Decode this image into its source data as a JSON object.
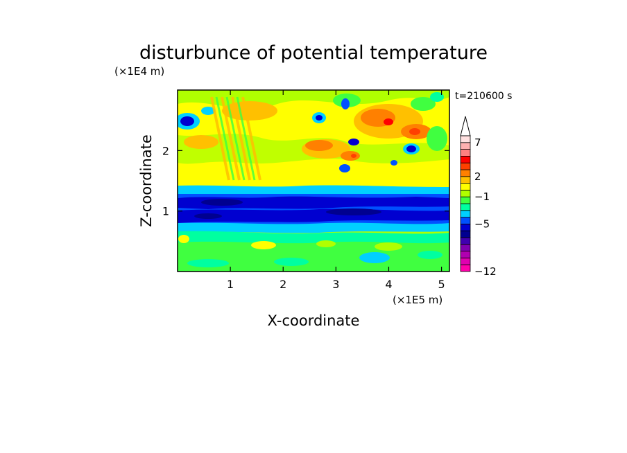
{
  "chart_data": {
    "type": "heatmap",
    "title": "disturbunce of potential temperature",
    "xlabel": "X-coordinate",
    "ylabel": "Z-coordinate",
    "x_unit": "(×1E5 m)",
    "y_unit": "(×1E4 m)",
    "time_label": "t=210600 s",
    "xlim": [
      0,
      5.15
    ],
    "ylim": [
      0,
      3.0
    ],
    "x_ticks": [
      1,
      2,
      3,
      4,
      5
    ],
    "y_ticks": [
      1,
      2
    ],
    "grid": false,
    "colorbar": {
      "placement": "right",
      "extend": "max",
      "levels": [
        -12,
        -11,
        -10,
        -9,
        -8,
        -7,
        -6,
        -5,
        -4,
        -3,
        -2,
        -1,
        0,
        1,
        2,
        3,
        4,
        5,
        6,
        7,
        8,
        9
      ],
      "tick_labels": [
        "7",
        "2",
        "−1",
        "−5",
        "−12"
      ],
      "tick_values": [
        7,
        2,
        -1,
        -5,
        -12
      ],
      "colors": [
        "#ff00aa",
        "#e000b0",
        "#b000b0",
        "#8000b0",
        "#4000b0",
        "#000090",
        "#0000d0",
        "#0050ff",
        "#00d0ff",
        "#00ffa0",
        "#40ff40",
        "#b0ff00",
        "#ffff00",
        "#ffc000",
        "#ff8000",
        "#ff4000",
        "#ff0000",
        "#ff8080",
        "#ffb0b0",
        "#ffe0e0"
      ]
    },
    "field_summary": [
      {
        "z_range": [
          0.0,
          0.35
        ],
        "value": 0.5
      },
      {
        "z_range": [
          0.35,
          0.75
        ],
        "value": -1
      },
      {
        "z_range": [
          0.75,
          1.35
        ],
        "value": -5
      },
      {
        "z_range": [
          1.35,
          3.0
        ],
        "value": 2
      }
    ]
  }
}
